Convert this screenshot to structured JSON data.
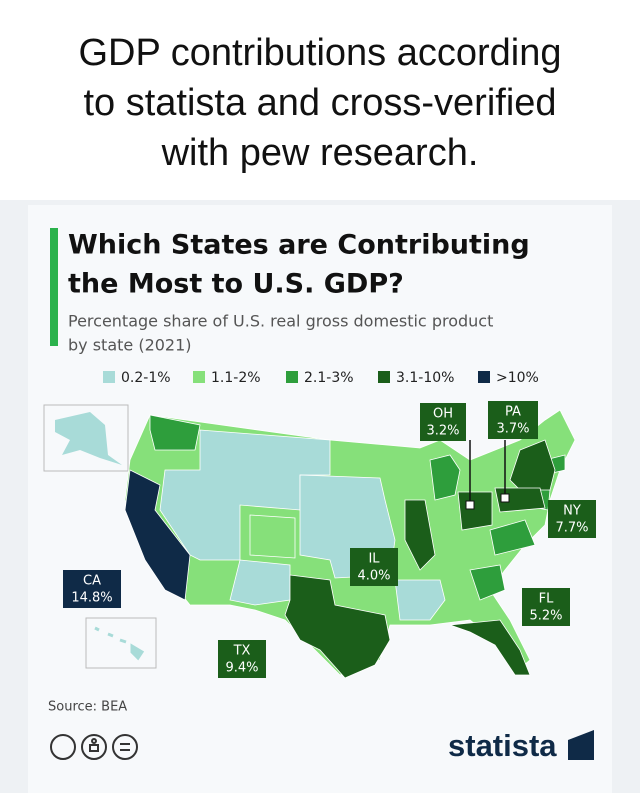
{
  "caption": [
    "GDP contributions according",
    "to statista and cross-verified",
    "with pew research."
  ],
  "card": {
    "title": [
      "Which States are Contributing",
      "the Most to U.S. GDP?"
    ],
    "subtitle": [
      "Percentage share of U.S. real gross domestic product",
      "by state (2021)"
    ],
    "legend": [
      "0.2-1%",
      "1.1-2%",
      "2.1-3%",
      "3.1-10%",
      ">10%"
    ],
    "callouts": [
      {
        "state": "OH",
        "share": "3.2%"
      },
      {
        "state": "PA",
        "share": "3.7%"
      },
      {
        "state": "NY",
        "share": "7.7%"
      },
      {
        "state": "IL",
        "share": "4.0%"
      },
      {
        "state": "FL",
        "share": "5.2%"
      },
      {
        "state": "CA",
        "share": "14.8%"
      },
      {
        "state": "TX",
        "share": "9.4%"
      }
    ],
    "source": "Source: BEA",
    "brand": "statista"
  }
}
